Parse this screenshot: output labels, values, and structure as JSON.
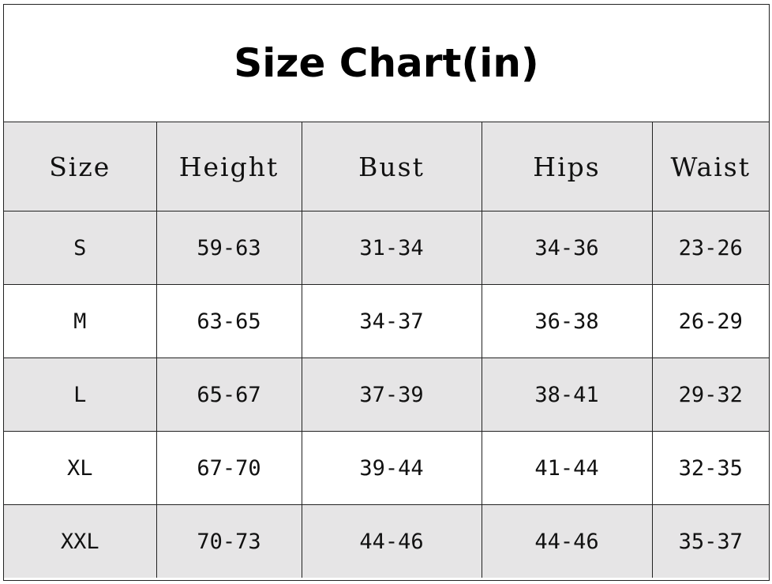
{
  "title": "Size Chart(in)",
  "columns": [
    "Size",
    "Height",
    "Bust",
    "Hips",
    "Waist"
  ],
  "rows": [
    [
      "S",
      "59-63",
      "31-34",
      "34-36",
      "23-26"
    ],
    [
      "M",
      "63-65",
      "34-37",
      "36-38",
      "26-29"
    ],
    [
      "L",
      "65-67",
      "37-39",
      "38-41",
      "29-32"
    ],
    [
      "XL",
      "67-70",
      "39-44",
      "41-44",
      "32-35"
    ],
    [
      "XXL",
      "70-73",
      "44-46",
      "44-46",
      "35-37"
    ]
  ],
  "colors": {
    "shaded_row": "#e6e5e6",
    "border": "#222222"
  }
}
